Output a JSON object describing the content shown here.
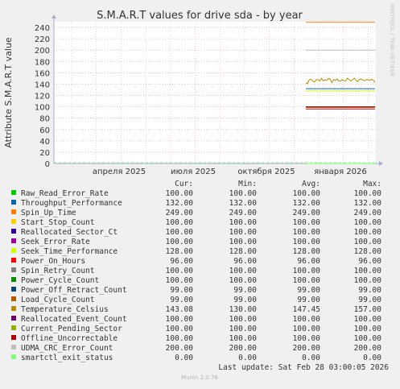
{
  "chart_data": {
    "type": "line",
    "title": "S.M.A.R.T values for drive sda - by year",
    "ylabel": "Attribute S.M.A.R.T value",
    "watermark": "RRDTOOL / TOBI OETIKER",
    "ylim": [
      0,
      250
    ],
    "yticks": [
      0,
      20,
      40,
      60,
      80,
      100,
      120,
      140,
      160,
      180,
      200,
      220,
      240
    ],
    "xticks": [
      "апреля 2025",
      "июля 2025",
      "октября 2025",
      "января 2026"
    ],
    "grid": true,
    "legend_headers": [
      "Cur:",
      "Min:",
      "Avg:",
      "Max:"
    ],
    "series": [
      {
        "name": "Raw_Read_Error_Rate",
        "color": "#00cc00",
        "cur": "100.00",
        "min": "100.00",
        "avg": "100.00",
        "max": "100.00",
        "value": 100
      },
      {
        "name": "Throughput_Performance",
        "color": "#0066b3",
        "cur": "132.00",
        "min": "132.00",
        "avg": "132.00",
        "max": "132.00",
        "value": 132
      },
      {
        "name": "Spin_Up_Time",
        "color": "#ff8000",
        "cur": "249.00",
        "min": "249.00",
        "avg": "249.00",
        "max": "249.00",
        "value": 249
      },
      {
        "name": "Start_Stop_Count",
        "color": "#ffcc00",
        "cur": "100.00",
        "min": "100.00",
        "avg": "100.00",
        "max": "100.00",
        "value": 100
      },
      {
        "name": "Reallocated_Sector_Ct",
        "color": "#330099",
        "cur": "100.00",
        "min": "100.00",
        "avg": "100.00",
        "max": "100.00",
        "value": 100
      },
      {
        "name": "Seek_Error_Rate",
        "color": "#990099",
        "cur": "100.00",
        "min": "100.00",
        "avg": "100.00",
        "max": "100.00",
        "value": 100
      },
      {
        "name": "Seek_Time_Performance",
        "color": "#ccff00",
        "cur": "128.00",
        "min": "128.00",
        "avg": "128.00",
        "max": "128.00",
        "value": 128
      },
      {
        "name": "Power_On_Hours",
        "color": "#ff0000",
        "cur": "96.00",
        "min": "96.00",
        "avg": "96.00",
        "max": "96.00",
        "value": 96
      },
      {
        "name": "Spin_Retry_Count",
        "color": "#808080",
        "cur": "100.00",
        "min": "100.00",
        "avg": "100.00",
        "max": "100.00",
        "value": 100
      },
      {
        "name": "Power_Cycle_Count",
        "color": "#008f00",
        "cur": "100.00",
        "min": "100.00",
        "avg": "100.00",
        "max": "100.00",
        "value": 100
      },
      {
        "name": "Power_Off_Retract_Count",
        "color": "#00487d",
        "cur": "99.00",
        "min": "99.00",
        "avg": "99.00",
        "max": "99.00",
        "value": 99
      },
      {
        "name": "Load_Cycle_Count",
        "color": "#b35a00",
        "cur": "99.00",
        "min": "99.00",
        "avg": "99.00",
        "max": "99.00",
        "value": 99
      },
      {
        "name": "Temperature_Celsius",
        "color": "#b38f00",
        "cur": "143.08",
        "min": "130.00",
        "avg": "147.45",
        "max": "157.00",
        "value": 147,
        "noisy": true
      },
      {
        "name": "Reallocated_Event_Count",
        "color": "#6b006b",
        "cur": "100.00",
        "min": "100.00",
        "avg": "100.00",
        "max": "100.00",
        "value": 100
      },
      {
        "name": "Current_Pending_Sector",
        "color": "#8fb300",
        "cur": "100.00",
        "min": "100.00",
        "avg": "100.00",
        "max": "100.00",
        "value": 100
      },
      {
        "name": "Offline_Uncorrectable",
        "color": "#b30000",
        "cur": "100.00",
        "min": "100.00",
        "avg": "100.00",
        "max": "100.00",
        "value": 100
      },
      {
        "name": "UDMA_CRC_Error_Count",
        "color": "#bebebe",
        "cur": "200.00",
        "min": "200.00",
        "avg": "200.00",
        "max": "200.00",
        "value": 200
      },
      {
        "name": "smartctl_exit_status",
        "color": "#80ff80",
        "cur": "0.00",
        "min": "0.00",
        "avg": "0.00",
        "max": "0.00",
        "value": 0
      }
    ],
    "last_update": "Last update: Sat Feb 28 03:00:05 2026",
    "footer": "Munin 2.0.76"
  }
}
